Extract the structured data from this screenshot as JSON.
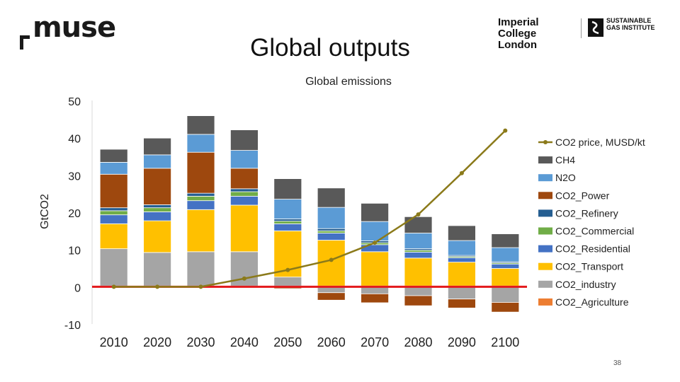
{
  "page": {
    "title": "Global outputs",
    "page_number": "38",
    "logos": {
      "muse": "muse",
      "imperial": "Imperial College London",
      "sgi": "SUSTAINABLE GAS INSTITUTE"
    }
  },
  "colors": {
    "CH4": "#595959",
    "N2O": "#5b9bd5",
    "CO2_Power": "#9e480e",
    "CO2_Refinery": "#255e91",
    "CO2_Commercial": "#70ad47",
    "CO2_Residential": "#4472c4",
    "CO2_Transport": "#ffc000",
    "CO2_industry": "#a5a5a5",
    "CO2_Agriculture": "#ed7d31",
    "price_line": "#8b7a1a",
    "zero_line": "#e31a1c"
  },
  "chart_data": {
    "type": "bar",
    "stacked": true,
    "title": "Global emissions",
    "xlabel": "",
    "ylabel": "GtCO2",
    "ylim": [
      -10,
      50
    ],
    "yticks": [
      -10,
      0,
      10,
      20,
      30,
      40,
      50
    ],
    "categories": [
      "2010",
      "2020",
      "2030",
      "2040",
      "2050",
      "2060",
      "2070",
      "2080",
      "2090",
      "2100"
    ],
    "series": [
      {
        "name": "CO2_Agriculture",
        "values": [
          0.2,
          0.2,
          0.2,
          0.2,
          0.2,
          0.2,
          0.2,
          0.2,
          0.2,
          0.2
        ]
      },
      {
        "name": "CO2_industry",
        "values": [
          10,
          9,
          9.2,
          9.2,
          2.4,
          -1.6,
          -1.9,
          -2.4,
          -3.3,
          -4.2
        ]
      },
      {
        "name": "CO2_Transport",
        "values": [
          6.7,
          8.5,
          11.3,
          12.5,
          12.4,
          12.3,
          9.2,
          7.5,
          6.4,
          4.7
        ]
      },
      {
        "name": "CO2_Residential",
        "values": [
          2.4,
          2.4,
          2.4,
          2.4,
          1.9,
          1.9,
          1.9,
          1.6,
          1.2,
          1.2
        ]
      },
      {
        "name": "CO2_Commercial",
        "values": [
          1.1,
          1.1,
          1.2,
          1.2,
          0.7,
          0.6,
          0.5,
          0.5,
          0.3,
          0.3
        ]
      },
      {
        "name": "CO2_Refinery",
        "values": [
          0.8,
          0.8,
          0.8,
          0.8,
          0.6,
          0.6,
          0.5,
          0.4,
          0.3,
          0.3
        ]
      },
      {
        "name": "CO2_Power",
        "values": [
          9,
          9.8,
          11,
          5.5,
          -0.5,
          -2,
          -2.4,
          -2.7,
          -2.4,
          -2.6
        ]
      },
      {
        "name": "N2O",
        "values": [
          3.2,
          3.6,
          4.8,
          4.8,
          5.3,
          5.7,
          5.2,
          4.2,
          4,
          3.8
        ]
      },
      {
        "name": "CH4",
        "values": [
          3.5,
          4.5,
          5,
          5.5,
          5.5,
          5.2,
          4.9,
          4.4,
          4,
          3.7
        ]
      }
    ],
    "line": {
      "name": "CO2 price, MUSD/kt",
      "values": [
        0,
        0,
        0,
        2.2,
        4.5,
        7.2,
        11.8,
        19.4,
        30.5,
        41.9
      ]
    },
    "legend": [
      "CO2 price, MUSD/kt",
      "CH4",
      "N2O",
      "CO2_Power",
      "CO2_Refinery",
      "CO2_Commercial",
      "CO2_Residential",
      "CO2_Transport",
      "CO2_industry",
      "CO2_Agriculture"
    ],
    "legend_position": "right",
    "grid": false
  }
}
